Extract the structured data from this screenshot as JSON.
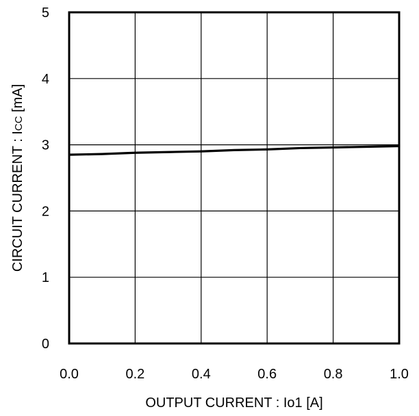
{
  "chart_data": {
    "type": "line",
    "title": "",
    "xlabel": "OUTPUT CURRENT : Io1 [A]",
    "ylabel": {
      "main": "CIRCUIT CURRENT : I",
      "sub": "CC",
      "unit": " [mA]"
    },
    "xlim": [
      0.0,
      1.0
    ],
    "ylim": [
      0,
      5
    ],
    "xticks": [
      "0.0",
      "0.2",
      "0.4",
      "0.6",
      "0.8",
      "1.0"
    ],
    "yticks": [
      "0",
      "1",
      "2",
      "3",
      "4",
      "5"
    ],
    "grid": true,
    "series": [
      {
        "x": [
          0.0,
          0.1,
          0.2,
          0.3,
          0.4,
          0.5,
          0.6,
          0.7,
          0.8,
          0.9,
          1.0
        ],
        "y": [
          2.85,
          2.86,
          2.88,
          2.89,
          2.9,
          2.92,
          2.93,
          2.95,
          2.96,
          2.97,
          2.98
        ]
      }
    ]
  }
}
